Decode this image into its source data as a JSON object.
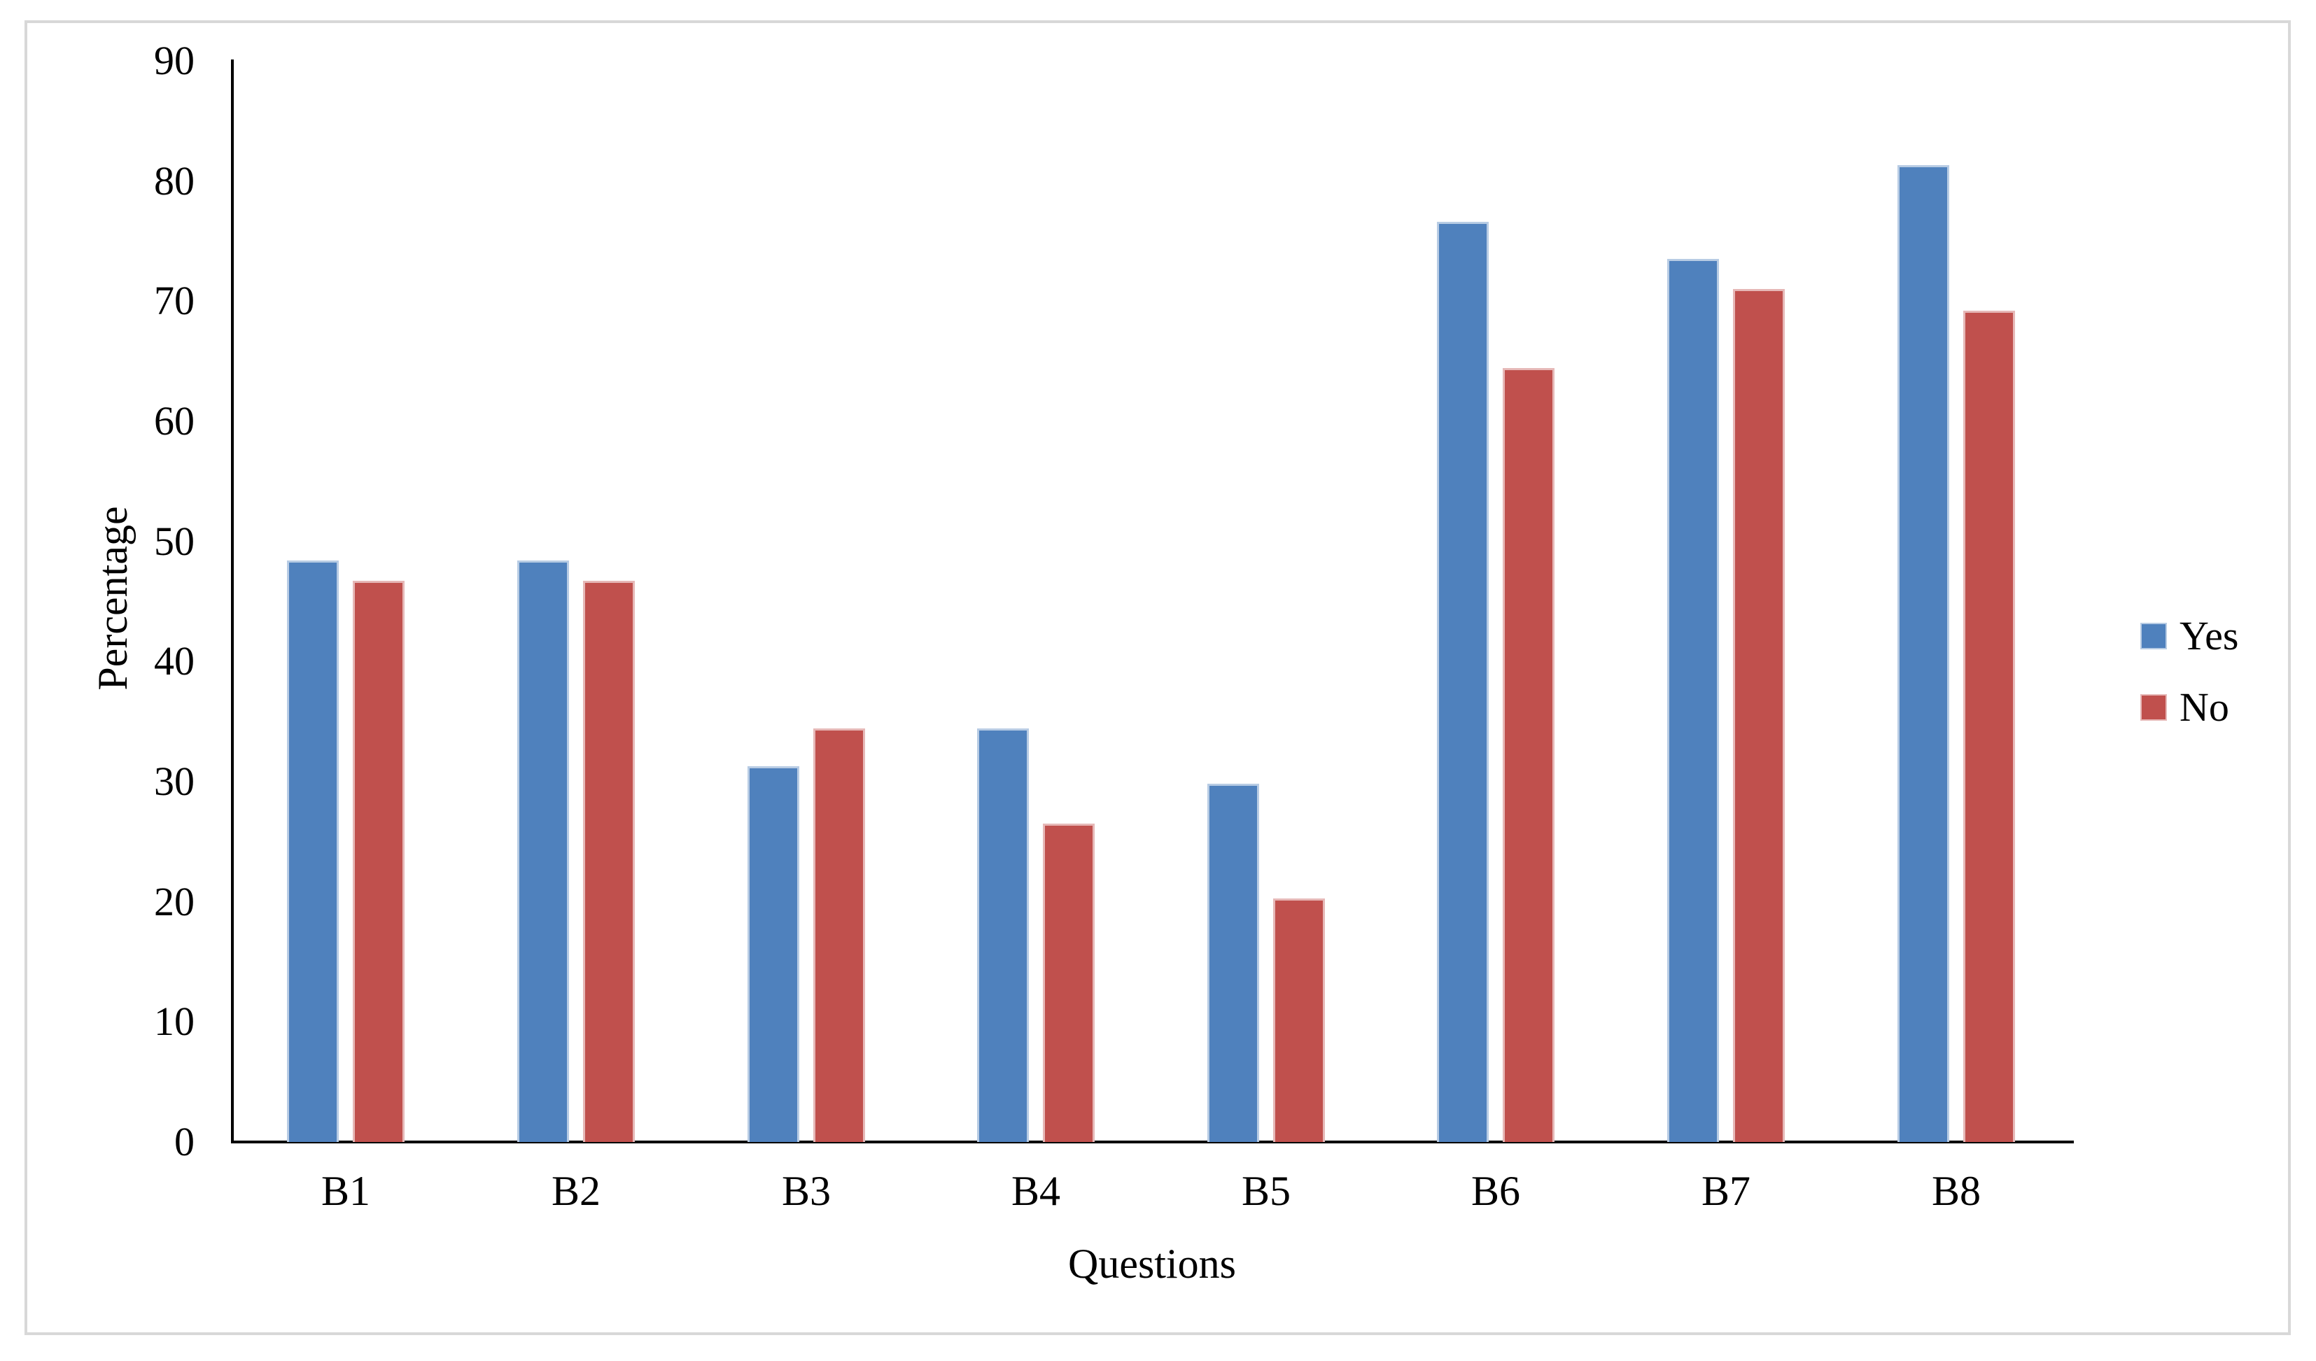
{
  "figure": {
    "border_color": "#d8d8d8",
    "background": "#ffffff"
  },
  "chart_data": {
    "type": "bar",
    "title": "",
    "categories": [
      "B1",
      "B2",
      "B3",
      "B4",
      "B5",
      "B6",
      "B7",
      "B8"
    ],
    "series": [
      {
        "name": "Yes",
        "color": "#4F81BD",
        "border_color": "#B8CCE4",
        "values": [
          48.4,
          48.4,
          31.3,
          34.4,
          29.8,
          76.6,
          73.5,
          81.3
        ]
      },
      {
        "name": "No",
        "color": "#C0504D",
        "border_color": "#E6B8B7",
        "values": [
          46.7,
          46.7,
          34.4,
          26.5,
          20.3,
          64.4,
          71.0,
          69.2
        ]
      }
    ],
    "xlabel": "Questions",
    "ylabel": "Percentage",
    "ylim": [
      0,
      90
    ],
    "ytick_step": 10,
    "yticks": [
      0,
      10,
      20,
      30,
      40,
      50,
      60,
      70,
      80,
      90
    ],
    "grid": false,
    "legend_position": "right",
    "legend": [
      "Yes",
      "No"
    ],
    "axis_color": "#000000"
  }
}
